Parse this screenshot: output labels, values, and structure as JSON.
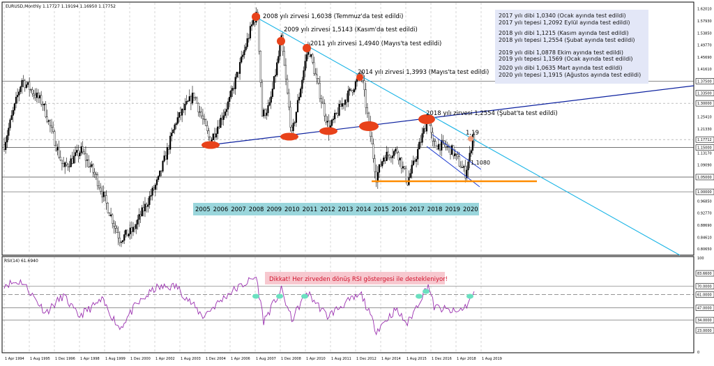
{
  "chart_data": [
    {
      "type": "candlestick",
      "header": "EURUSD,Monthly  1.17727 1.19194 1.16950 1.17752",
      "x_tick_labels": [
        "1 Apr 1994",
        "1 Aug 1995",
        "1 Dec 1996",
        "1 Apr 1998",
        "1 Aug 1999",
        "1 Dec 2000",
        "1 Apr 2002",
        "1 Aug 2003",
        "1 Dec 2004",
        "1 Apr 2006",
        "1 Aug 2007",
        "1 Dec 2008",
        "1 Apr 2010",
        "1 Aug 2011",
        "1 Dec 2012",
        "1 Apr 2014",
        "1 Aug 2015",
        "1 Dec 2016",
        "1 Apr 2018",
        "1 Aug 2019"
      ],
      "y_tick_labels": [
        "1.62010",
        "1.57930",
        "1.53850",
        "1.49770",
        "1.45690",
        "1.41610",
        "1.37500",
        "1.33500",
        "1.30000",
        "1.25410",
        "1.21330",
        "1.17712",
        "1.15000",
        "1.13170",
        "1.09090",
        "1.05000",
        "1.00000",
        "0.96850",
        "0.92770",
        "0.88690",
        "0.84610",
        "0.80650"
      ],
      "price_path": [
        [
          "1994-04",
          1.16
        ],
        [
          "1995-04",
          1.38
        ],
        [
          "1996-06",
          1.3
        ],
        [
          "1997-08",
          1.08
        ],
        [
          "1998-08",
          1.14
        ],
        [
          "1999-06",
          1.05
        ],
        [
          "2000-10",
          0.84
        ],
        [
          "2001-07",
          0.87
        ],
        [
          "2002-12",
          1.04
        ],
        [
          "2003-12",
          1.24
        ],
        [
          "2004-12",
          1.33
        ],
        [
          "2005-11",
          1.17
        ],
        [
          "2006-12",
          1.31
        ],
        [
          "2008-04",
          1.58
        ],
        [
          "2008-07",
          1.6038
        ],
        [
          "2008-10",
          1.26
        ],
        [
          "2009-03",
          1.29
        ],
        [
          "2009-11",
          1.5143
        ],
        [
          "2010-06",
          1.19
        ],
        [
          "2011-05",
          1.494
        ],
        [
          "2012-07",
          1.21
        ],
        [
          "2013-03",
          1.29
        ],
        [
          "2014-05",
          1.3993
        ],
        [
          "2015-03",
          1.05
        ],
        [
          "2015-08",
          1.12
        ],
        [
          "2016-05",
          1.14
        ],
        [
          "2016-12",
          1.034
        ],
        [
          "2017-04",
          1.09
        ],
        [
          "2018-02",
          1.2554
        ],
        [
          "2018-05",
          1.16
        ],
        [
          "2019-01",
          1.1569
        ],
        [
          "2019-06",
          1.14
        ],
        [
          "2020-03",
          1.0635
        ],
        [
          "2020-06",
          1.12
        ],
        [
          "2020-08",
          1.1915
        ],
        [
          "2020-09",
          1.1775
        ]
      ],
      "annotations": [
        "2008 yılı zirvesi 1,6038 (Temmuz'da test edildi)",
        "2009 yılı zirvesi 1,5143 (Kasım'da test edildi)",
        "2011 yılı zirvesi 1,4940 (Mayıs'ta test edildi)",
        "2014 yılı zirvesi 1,3993 (Mayıs'ta test edildi)",
        "2018 yılı zirvesi 1,2554 (Şubat'ta test edildi)",
        "1,19",
        "1,1080"
      ],
      "year_labels": [
        "2005",
        "2006",
        "2007",
        "2008",
        "2009",
        "2010",
        "2011",
        "2012",
        "2013",
        "2014",
        "2015",
        "2016",
        "2017",
        "2018",
        "2019",
        "2020"
      ],
      "info_box": [
        "2017 yılı dibi 1,0340 (Ocak ayında test edildi)",
        "2017 yılı tepesi 1,2092 Eylül ayında test edildi)",
        "2018 yılı dibi 1,1215 (Kasım ayında test edildi)",
        "2018 yılı tepesi 1,2554 (Şubat ayında test edildi)",
        "2019 yılı dibi 1,0878 Ekim ayında test edildi)",
        "2019  yılı tepesi 1,1569 (Ocak ayında test edildi)",
        "2020 yılı dibi 1,0635 Mart ayında test edildi)",
        "2020  yılı tepesi 1,1915 (Ağustos ayında test edildi)"
      ],
      "colors": {
        "trend_up": "#0a1f9e",
        "trend_down": "#19b4e6",
        "pivot": "#e8421a",
        "support": "#ff8c00",
        "year_box": "#9ad6dc",
        "info_box": "#e3e7f7"
      }
    },
    {
      "type": "line",
      "header": "RSI(14) 61.6940",
      "y_tick_labels": [
        "100",
        "83.6600",
        "70.0000",
        "61.0000",
        "47.0000",
        "34.0000",
        "23.0000",
        "0"
      ],
      "reference_levels": [
        70,
        61,
        47,
        34
      ],
      "note": "Dikkat! Her zirveden dönüş RSI göstergesi ile destekleniyor!",
      "rsi_path": [
        [
          "1994-04",
          72
        ],
        [
          "1995-04",
          75
        ],
        [
          "1996-08",
          42
        ],
        [
          "1997-08",
          60
        ],
        [
          "1998-06",
          38
        ],
        [
          "1999-10",
          55
        ],
        [
          "2000-10",
          25
        ],
        [
          "2001-08",
          48
        ],
        [
          "2002-10",
          68
        ],
        [
          "2003-12",
          70
        ],
        [
          "2005-06",
          38
        ],
        [
          "2006-12",
          63
        ],
        [
          "2008-06",
          80
        ],
        [
          "2008-11",
          33
        ],
        [
          "2009-11",
          66
        ],
        [
          "2010-06",
          34
        ],
        [
          "2011-04",
          64
        ],
        [
          "2012-06",
          38
        ],
        [
          "2013-06",
          52
        ],
        [
          "2014-05",
          61
        ],
        [
          "2015-03",
          23
        ],
        [
          "2016-04",
          45
        ],
        [
          "2016-12",
          30
        ],
        [
          "2018-02",
          72
        ],
        [
          "2018-06",
          48
        ],
        [
          "2019-09",
          42
        ],
        [
          "2020-03",
          48
        ],
        [
          "2020-09",
          62
        ]
      ],
      "colors": {
        "line": "#9b30b0",
        "marker": "#6be0c0"
      }
    }
  ]
}
